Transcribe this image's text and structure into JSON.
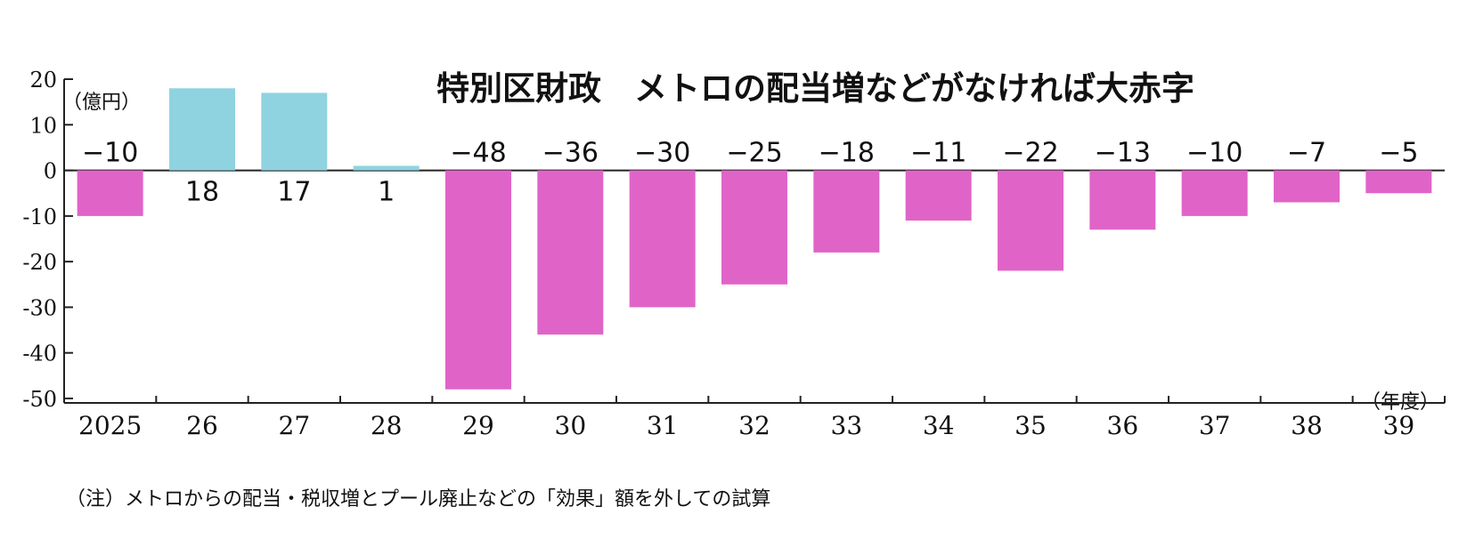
{
  "chart_data": {
    "type": "bar",
    "title": "特別区財政　メトロの配当増などがなければ大赤字",
    "ylabel": "（億円）",
    "xlabel": "（年度）",
    "note": "（注）メトロからの配当・税収増とプール廃止などの「効果」額を外しての試算",
    "ylim": [
      -50,
      20
    ],
    "yticks": [
      20,
      10,
      0,
      -10,
      -20,
      -30,
      -40,
      -50
    ],
    "categories": [
      "2025",
      "26",
      "27",
      "28",
      "29",
      "30",
      "31",
      "32",
      "33",
      "34",
      "35",
      "36",
      "37",
      "38",
      "39"
    ],
    "series": [
      {
        "values": [
          -10,
          18,
          17,
          1,
          -48,
          -36,
          -30,
          -25,
          -18,
          -11,
          -22,
          -13,
          -10,
          -7,
          -5
        ],
        "data_labels": [
          "−10",
          "18",
          "17",
          "1",
          "−48",
          "−36",
          "−30",
          "−25",
          "−18",
          "−11",
          "−22",
          "−13",
          "−10",
          "−7",
          "−5"
        ]
      }
    ],
    "colors": {
      "positive": "#8fd3e0",
      "negative": "#e064c8",
      "axis": "#222222"
    },
    "grid": false,
    "legend": "none"
  }
}
